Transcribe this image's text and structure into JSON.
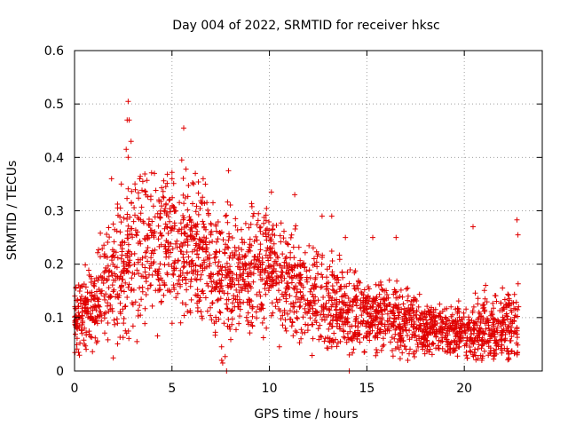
{
  "chart_data": {
    "type": "scatter",
    "title": "Day 004 of 2022, SRMTID for receiver hksc",
    "xlabel": "GPS time / hours",
    "ylabel": "SRMTID / TECUs",
    "xlim": [
      0,
      24
    ],
    "ylim": [
      0,
      0.6
    ],
    "x_ticks": [
      0,
      5,
      10,
      15,
      20
    ],
    "x_tick_labels": [
      "0",
      "5",
      "10",
      "15",
      "20"
    ],
    "y_ticks": [
      0,
      0.1,
      0.2,
      0.3,
      0.4,
      0.5,
      0.6
    ],
    "y_tick_labels": [
      "0",
      "0.1",
      "0.2",
      "0.3",
      "0.4",
      "0.5",
      "0.6"
    ],
    "grid": true,
    "marker": "+",
    "series_color": "#e00000",
    "trend": {
      "x": [
        0,
        1,
        2,
        3,
        4,
        5,
        6,
        7,
        7.8,
        9,
        10,
        11,
        12,
        13,
        14,
        15,
        16,
        17,
        18,
        19,
        20,
        21,
        22,
        22.8
      ],
      "y": [
        0.1,
        0.12,
        0.17,
        0.22,
        0.24,
        0.24,
        0.23,
        0.2,
        0.17,
        0.19,
        0.2,
        0.16,
        0.15,
        0.13,
        0.11,
        0.1,
        0.1,
        0.09,
        0.08,
        0.08,
        0.07,
        0.08,
        0.08,
        0.09
      ],
      "spread": [
        0.04,
        0.05,
        0.07,
        0.08,
        0.08,
        0.08,
        0.07,
        0.07,
        0.07,
        0.07,
        0.07,
        0.06,
        0.06,
        0.05,
        0.05,
        0.04,
        0.04,
        0.04,
        0.03,
        0.03,
        0.03,
        0.04,
        0.04,
        0.05
      ]
    },
    "points": [
      [
        2.75,
        0.505
      ],
      [
        2.7,
        0.47
      ],
      [
        2.8,
        0.47
      ],
      [
        2.9,
        0.43
      ],
      [
        2.65,
        0.415
      ],
      [
        2.75,
        0.4
      ],
      [
        5.6,
        0.455
      ],
      [
        5.5,
        0.395
      ],
      [
        6.2,
        0.37
      ],
      [
        7.9,
        0.375
      ],
      [
        3.2,
        0.055
      ],
      [
        0.5,
        0.05
      ],
      [
        7.55,
        0.02
      ],
      [
        7.6,
        0.015
      ],
      [
        7.8,
        0.0
      ],
      [
        14.1,
        0.0
      ],
      [
        22.7,
        0.283
      ],
      [
        22.75,
        0.255
      ],
      [
        20.45,
        0.27
      ],
      [
        15.3,
        0.25
      ],
      [
        16.5,
        0.25
      ],
      [
        10.1,
        0.335
      ],
      [
        11.3,
        0.33
      ],
      [
        5.0,
        0.36
      ],
      [
        4.1,
        0.37
      ],
      [
        12.7,
        0.29
      ],
      [
        13.2,
        0.29
      ],
      [
        13.9,
        0.25
      ],
      [
        14.1,
        0.03
      ],
      [
        20.9,
        0.02
      ],
      [
        17.1,
        0.02
      ],
      [
        1.9,
        0.36
      ],
      [
        2.4,
        0.35
      ],
      [
        3.5,
        0.355
      ],
      [
        6.6,
        0.36
      ]
    ]
  }
}
